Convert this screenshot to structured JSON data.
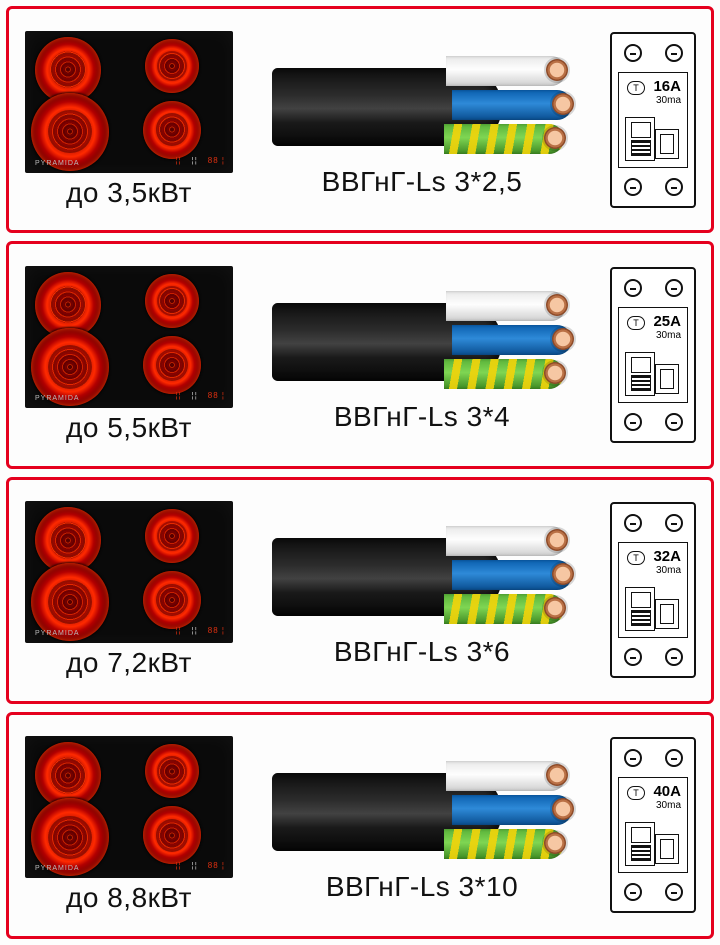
{
  "border_color": "#e5001e",
  "background_color": "#fdfdfd",
  "label_fontsize": 28,
  "label_color": "#111111",
  "cooktop": {
    "body_color": "#0a0a0a",
    "burner_gradient": [
      "#4a0000",
      "#8a0000",
      "#ff2a00",
      "#b30000",
      "#3a0000",
      "#000000"
    ],
    "brand": "PYRAMIDA"
  },
  "cable": {
    "jacket_gradient": [
      "#0d0d0d",
      "#2c2c2c",
      "#424242",
      "#1a1a1a",
      "#060606"
    ],
    "wire_colors": {
      "white": "#f2f2f2",
      "blue": "#1e78c8",
      "green_yellow": [
        "#5ab33a",
        "#f2d40a"
      ]
    },
    "copper_gradient": [
      "#f6c7a3",
      "#b97045",
      "#8d4a28"
    ]
  },
  "breaker": {
    "outline": "#111111",
    "sub_label": "30ma",
    "test_label": "T"
  },
  "rows": [
    {
      "power_label": "до 3,5кВт",
      "cable_label": "ВВГнГ-Ls 3*2,5",
      "breaker_rating": "16A"
    },
    {
      "power_label": "до 5,5кВт",
      "cable_label": "ВВГнГ-Ls 3*4",
      "breaker_rating": "25A"
    },
    {
      "power_label": "до 7,2кВт",
      "cable_label": "ВВГнГ-Ls 3*6",
      "breaker_rating": "32A"
    },
    {
      "power_label": "до 8,8кВт",
      "cable_label": "ВВГнГ-Ls 3*10",
      "breaker_rating": "40A"
    }
  ]
}
